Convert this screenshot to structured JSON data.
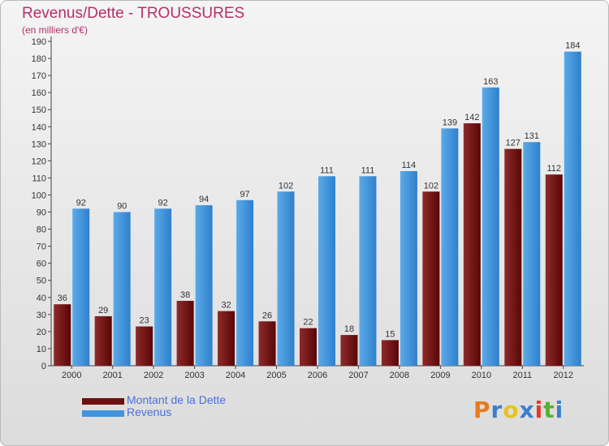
{
  "chart_data": {
    "type": "bar",
    "title": "Revenus/Dette - TROUSSURES",
    "subtitle": "(en milliers d'€)",
    "categories": [
      "2000",
      "2001",
      "2002",
      "2003",
      "2004",
      "2005",
      "2006",
      "2007",
      "2008",
      "2009",
      "2010",
      "2011",
      "2012"
    ],
    "series": [
      {
        "name": "Montant de la Dette",
        "color": "#6e0f0f",
        "values": [
          36,
          29,
          23,
          38,
          32,
          26,
          22,
          18,
          15,
          102,
          142,
          127,
          112
        ]
      },
      {
        "name": "Revenus",
        "color": "#3f95e0",
        "values": [
          92,
          90,
          92,
          94,
          97,
          102,
          111,
          111,
          114,
          139,
          163,
          131,
          184
        ]
      }
    ],
    "ylim": [
      0,
      190
    ],
    "yticks": [
      0,
      10,
      20,
      30,
      40,
      50,
      60,
      70,
      80,
      90,
      100,
      110,
      120,
      130,
      140,
      150,
      160,
      170,
      180,
      190
    ],
    "grid": false,
    "legend_position": "bottom-left"
  },
  "logo": {
    "text": "Proxiti",
    "colors": [
      "#e87b1e",
      "#3a7fd0",
      "#e8c21e",
      "#3a7fd0",
      "#e23a2a",
      "#58b030",
      "#3a7fd0"
    ]
  }
}
